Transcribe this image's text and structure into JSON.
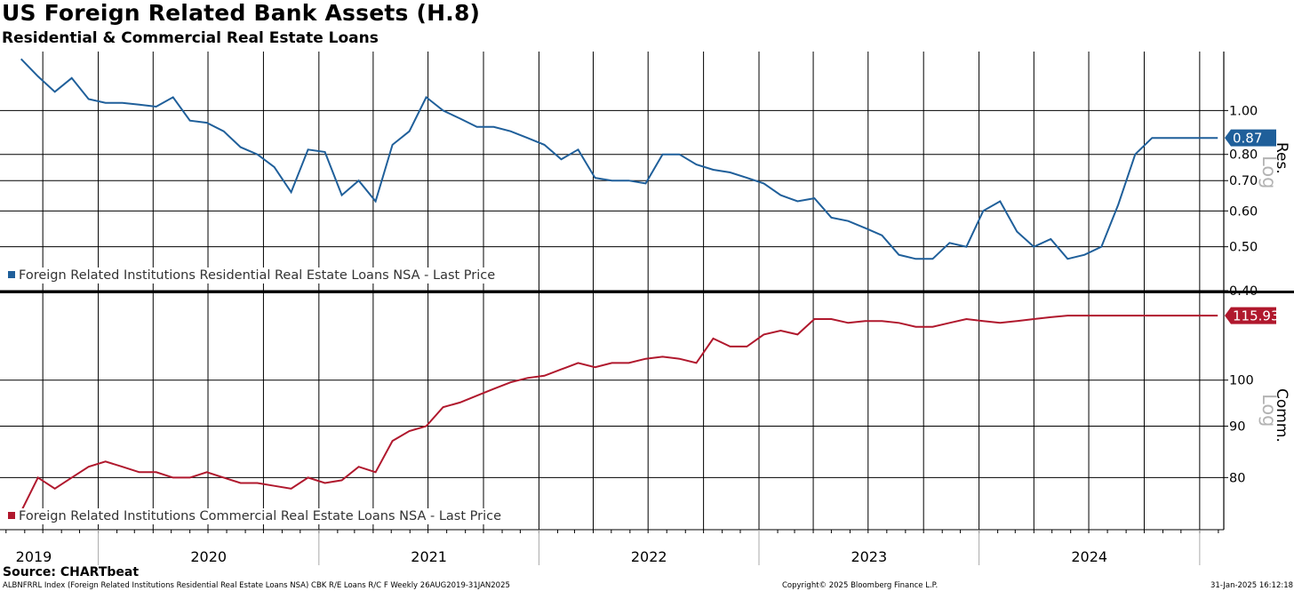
{
  "header": {
    "title": "US Foreign Related Bank Assets (H.8)",
    "subtitle": "Residential & Commercial Real Estate Loans"
  },
  "chart_data": [
    {
      "type": "line",
      "panel": "top",
      "axis_title": "Res.",
      "scale_label": "Log",
      "yscale": "log",
      "ylim": [
        0.4,
        1.35
      ],
      "yticks": [
        "1.00",
        "0.80",
        "0.70",
        "0.60",
        "0.50",
        "0.40"
      ],
      "last_value": "0.87",
      "color": "#1f5f9a",
      "series": [
        {
          "name": "Foreign Related Institutions Residential Real Estate Loans NSA - Last Price",
          "x": [
            "2019-08-26",
            "2019-09-23",
            "2019-10-21",
            "2019-11-18",
            "2019-12-16",
            "2020-01-13",
            "2020-02-10",
            "2020-03-09",
            "2020-04-06",
            "2020-05-04",
            "2020-06-01",
            "2020-06-29",
            "2020-07-27",
            "2020-08-24",
            "2020-09-21",
            "2020-10-19",
            "2020-11-16",
            "2020-12-14",
            "2021-01-11",
            "2021-02-08",
            "2021-03-08",
            "2021-04-05",
            "2021-05-03",
            "2021-05-31",
            "2021-06-28",
            "2021-07-26",
            "2021-08-23",
            "2021-09-20",
            "2021-10-18",
            "2021-11-15",
            "2021-12-13",
            "2022-01-10",
            "2022-02-07",
            "2022-03-07",
            "2022-04-04",
            "2022-05-02",
            "2022-05-30",
            "2022-06-27",
            "2022-07-25",
            "2022-08-22",
            "2022-09-19",
            "2022-10-17",
            "2022-11-14",
            "2022-12-12",
            "2023-01-09",
            "2023-02-06",
            "2023-03-06",
            "2023-04-03",
            "2023-05-01",
            "2023-05-29",
            "2023-06-26",
            "2023-07-24",
            "2023-08-21",
            "2023-09-18",
            "2023-10-16",
            "2023-11-13",
            "2023-12-11",
            "2024-01-08",
            "2024-02-05",
            "2024-03-04",
            "2024-04-01",
            "2024-04-29",
            "2024-05-27",
            "2024-06-24",
            "2024-07-22",
            "2024-08-19",
            "2024-09-16",
            "2024-10-14",
            "2024-11-11",
            "2024-12-09",
            "2025-01-06",
            "2025-01-31"
          ],
          "values": [
            1.3,
            1.19,
            1.1,
            1.18,
            1.06,
            1.04,
            1.04,
            1.03,
            1.02,
            1.07,
            0.95,
            0.94,
            0.9,
            0.83,
            0.8,
            0.75,
            0.66,
            0.82,
            0.81,
            0.65,
            0.7,
            0.63,
            0.84,
            0.9,
            1.07,
            1.0,
            0.96,
            0.92,
            0.92,
            0.9,
            0.87,
            0.84,
            0.78,
            0.82,
            0.71,
            0.7,
            0.7,
            0.69,
            0.8,
            0.8,
            0.76,
            0.74,
            0.73,
            0.71,
            0.69,
            0.65,
            0.63,
            0.64,
            0.58,
            0.57,
            0.55,
            0.53,
            0.48,
            0.47,
            0.47,
            0.51,
            0.5,
            0.6,
            0.63,
            0.54,
            0.5,
            0.52,
            0.47,
            0.48,
            0.5,
            0.62,
            0.8,
            0.87,
            0.87,
            0.87,
            0.87,
            0.87
          ]
        }
      ]
    },
    {
      "type": "line",
      "panel": "bottom",
      "axis_title": "Comm.",
      "scale_label": "Log",
      "yscale": "log",
      "ylim": [
        71,
        122
      ],
      "yticks": [
        "100",
        "90",
        "80"
      ],
      "last_value": "115.93",
      "color": "#b0182d",
      "series": [
        {
          "name": "Foreign Related Institutions Commercial Real Estate Loans NSA - Last Price",
          "x": [
            "2019-08-26",
            "2019-09-23",
            "2019-10-21",
            "2019-11-18",
            "2019-12-16",
            "2020-01-13",
            "2020-02-10",
            "2020-03-09",
            "2020-04-06",
            "2020-05-04",
            "2020-06-01",
            "2020-06-29",
            "2020-07-27",
            "2020-08-24",
            "2020-09-21",
            "2020-10-19",
            "2020-11-16",
            "2020-12-14",
            "2021-01-11",
            "2021-02-08",
            "2021-03-08",
            "2021-04-05",
            "2021-05-03",
            "2021-05-31",
            "2021-06-28",
            "2021-07-26",
            "2021-08-23",
            "2021-09-20",
            "2021-10-18",
            "2021-11-15",
            "2021-12-13",
            "2022-01-10",
            "2022-02-07",
            "2022-03-07",
            "2022-04-04",
            "2022-05-02",
            "2022-05-30",
            "2022-06-27",
            "2022-07-25",
            "2022-08-22",
            "2022-09-19",
            "2022-10-17",
            "2022-11-14",
            "2022-12-12",
            "2023-01-09",
            "2023-02-06",
            "2023-03-06",
            "2023-04-03",
            "2023-05-01",
            "2023-05-29",
            "2023-06-26",
            "2023-07-24",
            "2023-08-21",
            "2023-09-18",
            "2023-10-16",
            "2023-11-13",
            "2023-12-11",
            "2024-01-08",
            "2024-02-05",
            "2024-03-04",
            "2024-04-01",
            "2024-04-29",
            "2024-05-27",
            "2024-06-24",
            "2024-07-22",
            "2024-08-19",
            "2024-09-16",
            "2024-10-14",
            "2024-11-11",
            "2024-12-09",
            "2025-01-06",
            "2025-01-31"
          ],
          "values": [
            74,
            80,
            78,
            80,
            82,
            83,
            82,
            81,
            81,
            80,
            80,
            81,
            80,
            79,
            79,
            78.5,
            78,
            80,
            79,
            79.5,
            82,
            81,
            87,
            89,
            90,
            94,
            95,
            96.5,
            98,
            99.5,
            100.5,
            101,
            102.5,
            104,
            103,
            104,
            104,
            105,
            105.5,
            105,
            104,
            110,
            108,
            108,
            111,
            112,
            111,
            115,
            115,
            114,
            114.5,
            114.5,
            114,
            113,
            113,
            114,
            115,
            114.5,
            114,
            114.5,
            115,
            115.5,
            115.93,
            115.93,
            115.93,
            115.93,
            115.93,
            115.93,
            115.93,
            115.93,
            115.93,
            115.93
          ]
        }
      ]
    }
  ],
  "x_axis": {
    "years": [
      "2019",
      "2020",
      "2021",
      "2022",
      "2023",
      "2024"
    ]
  },
  "footer": {
    "source": "Source: CHARTbeat",
    "index_note": "ALBNFRRL Index (Foreign Related Institutions Residential Real Estate Loans NSA) CBK R/E Loans R/C F  Weekly 26AUG2019-31JAN2025",
    "copyright": "Copyright© 2025 Bloomberg Finance L.P.",
    "timestamp": "31-Jan-2025 16:12:18"
  }
}
